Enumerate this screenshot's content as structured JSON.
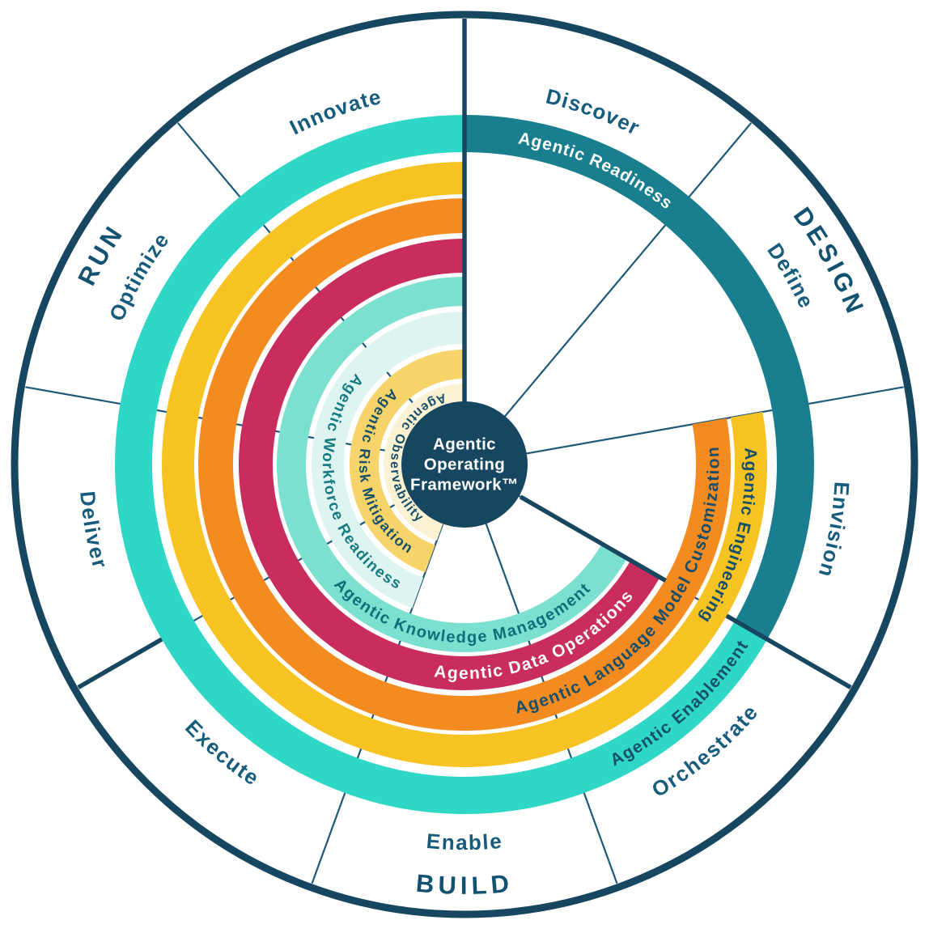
{
  "center": {
    "lines": [
      "Agentic",
      "Operating",
      "Framework™"
    ]
  },
  "phases": [
    {
      "id": "design",
      "label": "DESIGN",
      "angle": 61,
      "orient": "out"
    },
    {
      "id": "build",
      "label": "BUILD",
      "angle": 180,
      "orient": "in"
    },
    {
      "id": "run",
      "label": "RUN",
      "angle": 300,
      "orient": "out"
    }
  ],
  "segments": [
    {
      "id": "discover",
      "label": "Discover",
      "angle": 20,
      "orient": "out"
    },
    {
      "id": "define",
      "label": "Define",
      "angle": 60,
      "orient": "out"
    },
    {
      "id": "envision",
      "label": "Envision",
      "angle": 100,
      "orient": "out"
    },
    {
      "id": "orchestrate",
      "label": "Orchestrate",
      "angle": 140,
      "orient": "in"
    },
    {
      "id": "enable",
      "label": "Enable",
      "angle": 180,
      "orient": "in"
    },
    {
      "id": "execute",
      "label": "Execute",
      "angle": 220,
      "orient": "in"
    },
    {
      "id": "deliver",
      "label": "Deliver",
      "angle": 260,
      "orient": "in"
    },
    {
      "id": "optimize",
      "label": "Optimize",
      "angle": 300,
      "orient": "out"
    },
    {
      "id": "innovate",
      "label": "Innovate",
      "angle": 340,
      "orient": "out"
    }
  ],
  "rings": [
    {
      "id": "agentic-readiness",
      "label": "Agentic Readiness",
      "color": "#197F8E",
      "text_color": "#FFFFFF",
      "start": 0,
      "end": 120,
      "inner": 386,
      "outer": 432,
      "label_angle": 24,
      "orient": "out",
      "font_size": 21
    },
    {
      "id": "agentic-enablement",
      "label": "Agentic Enablement",
      "color": "#2FD7C6",
      "text_color": "#174F6B",
      "start": 120,
      "end": 360,
      "inner": 386,
      "outer": 432,
      "label_angle": 138,
      "orient": "in",
      "font_size": 21
    },
    {
      "id": "agentic-engineering",
      "label": "Agentic Engineering",
      "color": "#F7C322",
      "text_color": "#174F6B",
      "start": 80,
      "end": 360,
      "inner": 334,
      "outer": 374,
      "label_angle": 105,
      "orient": "out",
      "font_size": 21
    },
    {
      "id": "agentic-language-model-customization",
      "label": "Agentic Language Model Customization",
      "color": "#F48B20",
      "text_color": "#174F6B",
      "start": 80,
      "end": 360,
      "inner": 286,
      "outer": 329,
      "label_angle": 127,
      "orient": "in",
      "font_size": 21
    },
    {
      "id": "agentic-data-operations",
      "label": "Agentic Data Operations",
      "color": "#C92D5D",
      "text_color": "#FFFFFF",
      "start": 120,
      "end": 360,
      "inner": 237,
      "outer": 279,
      "label_angle": 158,
      "orient": "in",
      "font_size": 21
    },
    {
      "id": "agentic-knowledge-management",
      "label": "Agentic Knowledge Management",
      "color": "#7CE0D0",
      "text_color": "#0F6E7A",
      "start": 120,
      "end": 360,
      "inner": 196,
      "outer": 232,
      "label_angle": 181,
      "orient": "in",
      "font_size": 20
    },
    {
      "id": "agentic-workforce-readiness",
      "label": "Agentic Workforce Readiness",
      "color": "#DEF4F0",
      "text_color": "#157A82",
      "start": 200,
      "end": 360,
      "inner": 149,
      "outer": 189,
      "label_angle": 259,
      "orient": "in",
      "font_size": 19
    },
    {
      "id": "agentic-risk-mitigation",
      "label": "Agentic Risk Mitigation",
      "color": "#F7D469",
      "text_color": "#174F6B",
      "start": 200,
      "end": 360,
      "inner": 106,
      "outer": 142,
      "label_angle": 264,
      "orient": "in",
      "font_size": 18
    },
    {
      "id": "agentic-observability",
      "label": "Agentic Observability",
      "color": "#FBF1D3",
      "text_color": "#174F6B",
      "start": 200,
      "end": 360,
      "inner": 72,
      "outer": 100,
      "label_angle": 281,
      "orient": "in",
      "font_size": 16
    }
  ],
  "colors": {
    "navy": "#164660",
    "thin_line": "#1E5878",
    "segment_text": "#175C7C",
    "phase_text": "#12516F",
    "center_bg": "#164660",
    "center_text": "#FFFFFF",
    "background": "#FFFFFF"
  }
}
